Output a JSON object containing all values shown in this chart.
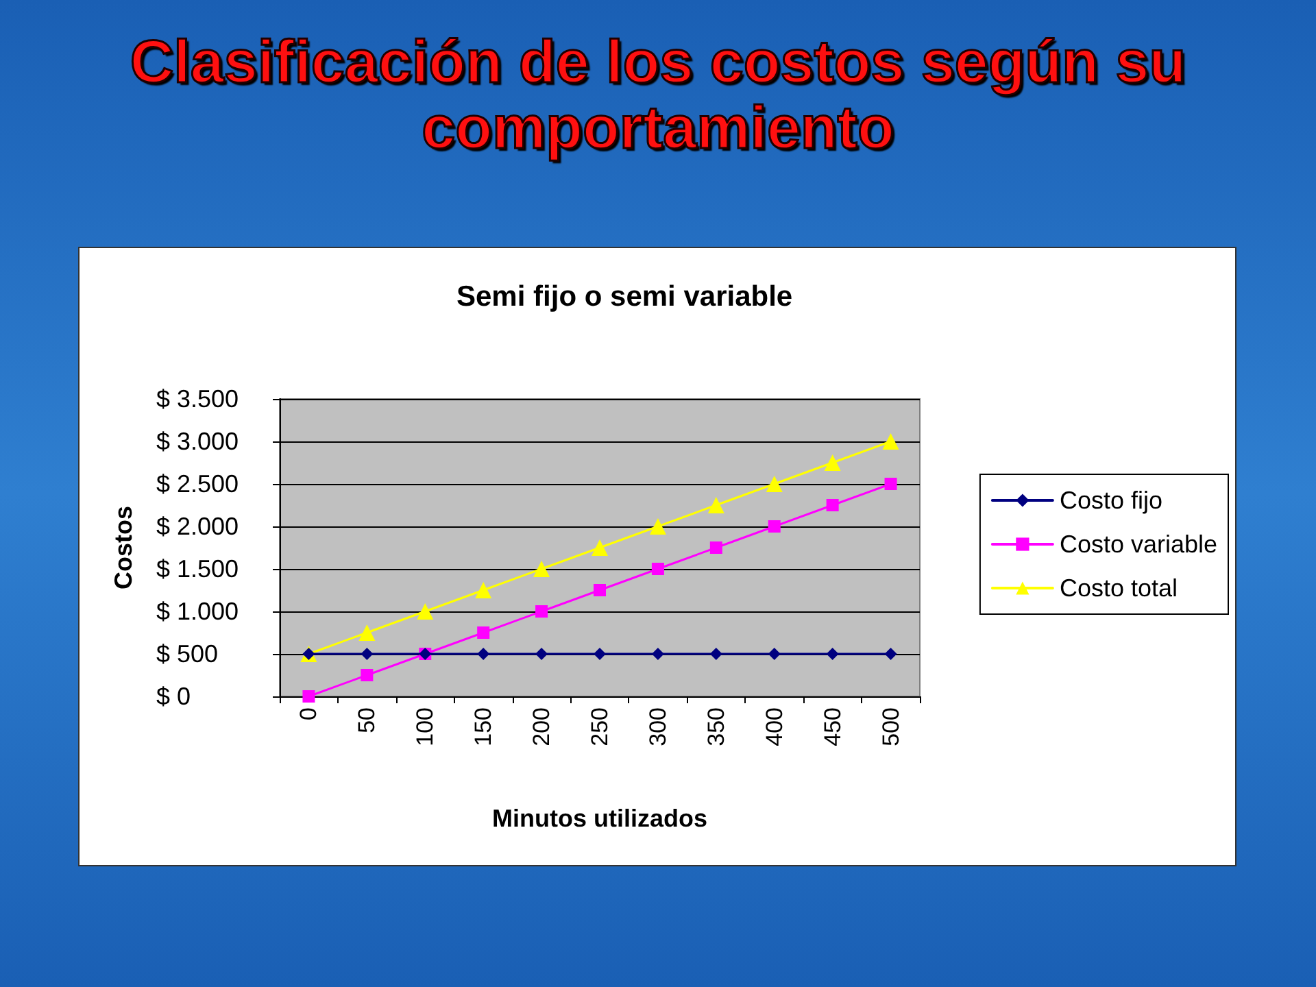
{
  "chart_data": {
    "type": "line",
    "title": "Clasificación de los costos según su comportamiento",
    "subtitle": "Semi fijo o semi variable",
    "xlabel": "Minutos utilizados",
    "ylabel": "Costos",
    "categories": [
      "0",
      "50",
      "100",
      "150",
      "200",
      "250",
      "300",
      "350",
      "400",
      "450",
      "500"
    ],
    "series": [
      {
        "name": "Costo fijo",
        "color": "#000080",
        "marker": "diamond",
        "values": [
          500,
          500,
          500,
          500,
          500,
          500,
          500,
          500,
          500,
          500,
          500
        ]
      },
      {
        "name": "Costo variable",
        "color": "#ff00ff",
        "marker": "square",
        "values": [
          0,
          250,
          500,
          750,
          1000,
          1250,
          1500,
          1750,
          2000,
          2250,
          2500
        ]
      },
      {
        "name": "Costo total",
        "color": "#ffff00",
        "marker": "triangle",
        "values": [
          500,
          750,
          1000,
          1250,
          1500,
          1750,
          2000,
          2250,
          2500,
          2750,
          3000
        ]
      }
    ],
    "ylim": [
      0,
      3500
    ],
    "yticks": [
      {
        "value": 0,
        "label": "$ 0"
      },
      {
        "value": 500,
        "label": "$ 500"
      },
      {
        "value": 1000,
        "label": "$ 1.000"
      },
      {
        "value": 1500,
        "label": "$ 1.500"
      },
      {
        "value": 2000,
        "label": "$ 2.000"
      },
      {
        "value": 2500,
        "label": "$ 2.500"
      },
      {
        "value": 3000,
        "label": "$ 3.000"
      },
      {
        "value": 3500,
        "label": "$ 3.500"
      }
    ],
    "grid": "y",
    "legend": "right",
    "line_style": "solid"
  }
}
